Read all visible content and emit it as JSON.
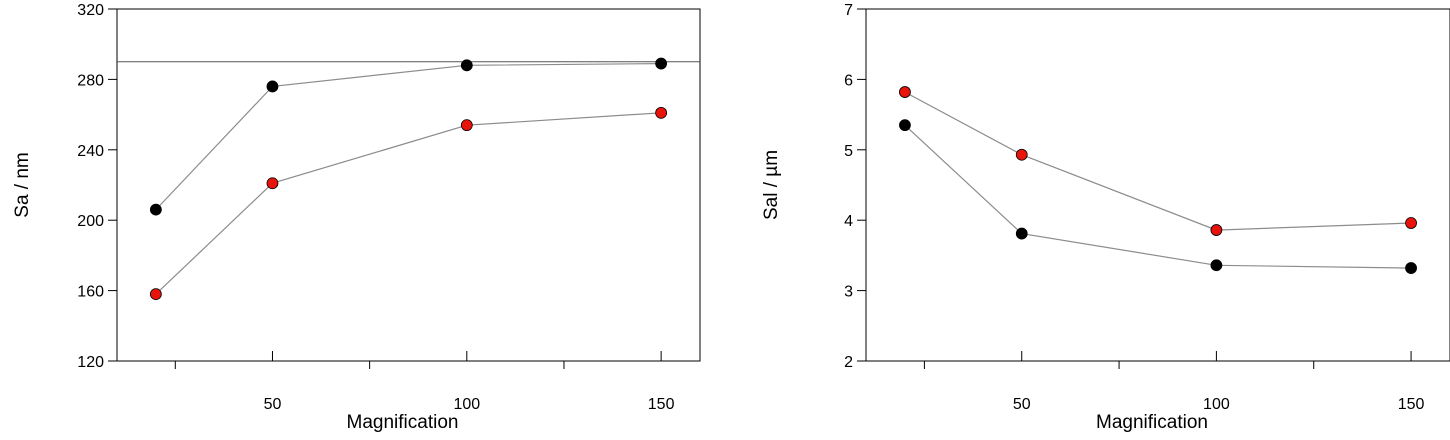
{
  "chart_data": [
    {
      "type": "scatter",
      "xlabel": "Magnification",
      "ylabel": "Sa / nm",
      "xlim": [
        10,
        160
      ],
      "ylim": [
        120,
        320
      ],
      "x_ticks": [
        50,
        100,
        150
      ],
      "x_minor_ticks": [
        25,
        75,
        125
      ],
      "y_ticks": [
        120,
        160,
        200,
        240,
        280,
        320
      ],
      "grid": false,
      "reference_line_y": 290,
      "line_color": "#8c8c8c",
      "series": [
        {
          "color": "#000000",
          "x": [
            20,
            50,
            100,
            150
          ],
          "y": [
            206,
            276,
            288,
            289
          ]
        },
        {
          "color": "#e8140c",
          "x": [
            20,
            50,
            100,
            150
          ],
          "y": [
            158,
            221,
            254,
            261
          ]
        }
      ]
    },
    {
      "type": "scatter",
      "xlabel": "Magnification",
      "ylabel": "Sal / µm",
      "xlim": [
        10,
        160
      ],
      "ylim": [
        2,
        7
      ],
      "x_ticks": [
        50,
        100,
        150
      ],
      "x_minor_ticks": [
        25,
        75,
        125
      ],
      "y_ticks": [
        2,
        3,
        4,
        5,
        6,
        7
      ],
      "grid": false,
      "line_color": "#8c8c8c",
      "series": [
        {
          "color": "#000000",
          "x": [
            20,
            50,
            100,
            150
          ],
          "y": [
            5.35,
            3.81,
            3.36,
            3.32
          ]
        },
        {
          "color": "#e8140c",
          "x": [
            20,
            50,
            100,
            150
          ],
          "y": [
            5.82,
            4.93,
            3.86,
            3.96
          ]
        }
      ]
    }
  ]
}
